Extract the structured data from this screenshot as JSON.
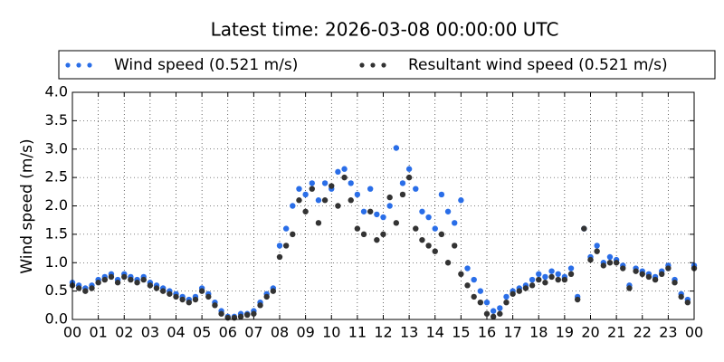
{
  "chart_data": {
    "type": "scatter",
    "title": "Latest time: 2026-03-08 00:00:00 UTC",
    "y_label": "Wind speed (m/s)",
    "x": [
      0,
      0.25,
      0.5,
      0.75,
      1,
      1.25,
      1.5,
      1.75,
      2,
      2.25,
      2.5,
      2.75,
      3,
      3.25,
      3.5,
      3.75,
      4,
      4.25,
      4.5,
      4.75,
      5,
      5.25,
      5.5,
      5.75,
      6,
      6.25,
      6.5,
      6.75,
      7,
      7.25,
      7.5,
      7.75,
      8,
      8.25,
      8.5,
      8.75,
      9,
      9.25,
      9.5,
      9.75,
      10,
      10.25,
      10.5,
      10.75,
      11,
      11.25,
      11.5,
      11.75,
      12,
      12.25,
      12.5,
      12.75,
      13,
      13.25,
      13.5,
      13.75,
      14,
      14.25,
      14.5,
      14.75,
      15,
      15.25,
      15.5,
      15.75,
      16,
      16.25,
      16.5,
      16.75,
      17,
      17.25,
      17.5,
      17.75,
      18,
      18.25,
      18.5,
      18.75,
      19,
      19.25,
      19.5,
      19.75,
      20,
      20.25,
      20.5,
      20.75,
      21,
      21.25,
      21.5,
      21.75,
      22,
      22.25,
      22.5,
      22.75,
      23,
      23.25,
      23.5,
      23.75,
      24
    ],
    "series": [
      {
        "name": "Wind speed (0.521 m/s)",
        "color": "#2a6ee8",
        "values": [
          0.65,
          0.6,
          0.55,
          0.6,
          0.7,
          0.75,
          0.8,
          0.7,
          0.8,
          0.75,
          0.7,
          0.75,
          0.65,
          0.6,
          0.55,
          0.5,
          0.45,
          0.4,
          0.35,
          0.4,
          0.55,
          0.45,
          0.3,
          0.15,
          0.05,
          0.05,
          0.1,
          0.1,
          0.15,
          0.3,
          0.45,
          0.55,
          1.3,
          1.6,
          2.0,
          2.3,
          2.2,
          2.4,
          2.1,
          2.4,
          2.3,
          2.6,
          2.65,
          2.4,
          2.2,
          1.9,
          2.3,
          1.85,
          1.8,
          2.0,
          3.02,
          2.4,
          2.65,
          2.3,
          1.9,
          1.8,
          1.6,
          2.2,
          1.9,
          1.7,
          2.1,
          0.9,
          0.7,
          0.5,
          0.3,
          0.15,
          0.2,
          0.4,
          0.5,
          0.55,
          0.6,
          0.7,
          0.8,
          0.75,
          0.85,
          0.8,
          0.75,
          0.9,
          0.4,
          1.6,
          1.1,
          1.3,
          1.0,
          1.1,
          1.05,
          0.95,
          0.6,
          0.9,
          0.85,
          0.8,
          0.75,
          0.85,
          0.95,
          0.7,
          0.45,
          0.35,
          0.95
        ]
      },
      {
        "name": "Resultant wind speed (0.521 m/s)",
        "color": "#333333",
        "values": [
          0.6,
          0.55,
          0.5,
          0.55,
          0.65,
          0.7,
          0.75,
          0.65,
          0.75,
          0.7,
          0.65,
          0.7,
          0.6,
          0.55,
          0.5,
          0.45,
          0.4,
          0.35,
          0.3,
          0.35,
          0.5,
          0.4,
          0.25,
          0.1,
          0.03,
          0.03,
          0.05,
          0.08,
          0.1,
          0.25,
          0.4,
          0.5,
          1.1,
          1.3,
          1.5,
          2.1,
          1.9,
          2.3,
          1.7,
          2.1,
          2.35,
          2.0,
          2.5,
          2.1,
          1.6,
          1.5,
          1.9,
          1.4,
          1.5,
          2.15,
          1.7,
          2.2,
          2.5,
          1.6,
          1.4,
          1.3,
          1.2,
          1.5,
          1.0,
          1.3,
          0.8,
          0.6,
          0.4,
          0.3,
          0.1,
          0.05,
          0.1,
          0.3,
          0.45,
          0.5,
          0.55,
          0.6,
          0.7,
          0.65,
          0.75,
          0.7,
          0.7,
          0.8,
          0.35,
          1.6,
          1.05,
          1.2,
          0.95,
          1.0,
          1.0,
          0.9,
          0.55,
          0.85,
          0.8,
          0.75,
          0.7,
          0.8,
          0.9,
          0.65,
          0.4,
          0.3,
          0.9
        ]
      }
    ],
    "xlim": [
      0,
      24
    ],
    "xticks": [
      {
        "value": 0,
        "label": "00"
      },
      {
        "value": 1,
        "label": "01"
      },
      {
        "value": 2,
        "label": "02"
      },
      {
        "value": 3,
        "label": "03"
      },
      {
        "value": 4,
        "label": "04"
      },
      {
        "value": 5,
        "label": "05"
      },
      {
        "value": 6,
        "label": "06"
      },
      {
        "value": 7,
        "label": "07"
      },
      {
        "value": 8,
        "label": "08"
      },
      {
        "value": 9,
        "label": "09"
      },
      {
        "value": 10,
        "label": "10"
      },
      {
        "value": 11,
        "label": "11"
      },
      {
        "value": 12,
        "label": "12"
      },
      {
        "value": 13,
        "label": "13"
      },
      {
        "value": 14,
        "label": "14"
      },
      {
        "value": 15,
        "label": "15"
      },
      {
        "value": 16,
        "label": "16"
      },
      {
        "value": 17,
        "label": "17"
      },
      {
        "value": 18,
        "label": "18"
      },
      {
        "value": 19,
        "label": "19"
      },
      {
        "value": 20,
        "label": "20"
      },
      {
        "value": 21,
        "label": "21"
      },
      {
        "value": 22,
        "label": "22"
      },
      {
        "value": 23,
        "label": "23"
      },
      {
        "value": 24,
        "label": "00"
      }
    ],
    "ylim": [
      0,
      4
    ],
    "yticks": [
      {
        "value": 0,
        "label": "0.0"
      },
      0.5,
      {
        "value": 1,
        "label": "1.0"
      },
      1.5,
      {
        "value": 2,
        "label": "2.0"
      },
      2.5,
      {
        "value": 3,
        "label": "3.0"
      },
      3.5,
      {
        "value": 4,
        "label": "4.0"
      }
    ],
    "grid": true
  }
}
